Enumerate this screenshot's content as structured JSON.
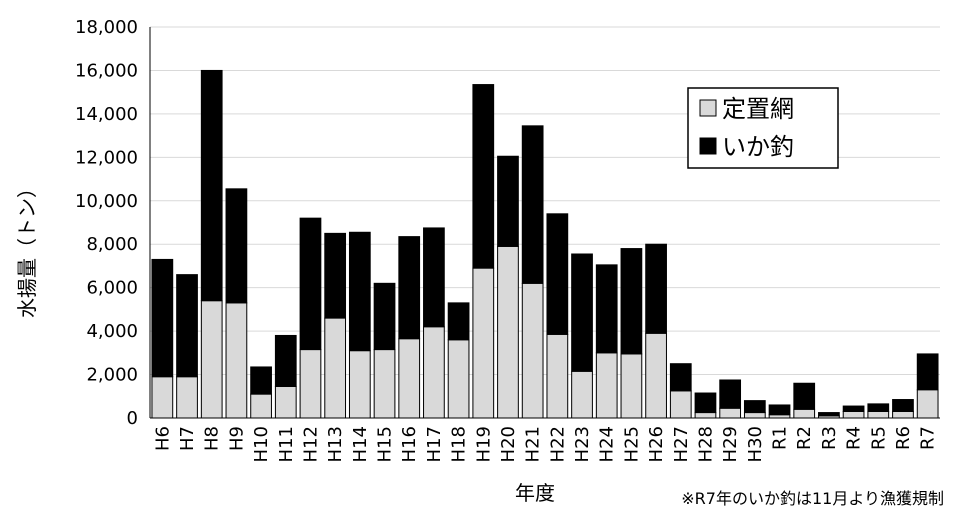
{
  "chart_data": {
    "type": "bar",
    "stacked": true,
    "xlabel": "年度",
    "ylabel": "水揚量（トン）",
    "ylim": [
      0,
      18000
    ],
    "yticks": [
      0,
      2000,
      4000,
      6000,
      8000,
      10000,
      12000,
      14000,
      16000,
      18000
    ],
    "ytick_labels": [
      "0",
      "2,000",
      "4,000",
      "6,000",
      "8,000",
      "10,000",
      "12,000",
      "14,000",
      "16,000",
      "18,000"
    ],
    "grid": true,
    "legend_position": "top-right",
    "categories": [
      "H6",
      "H7",
      "H8",
      "H9",
      "H10",
      "H11",
      "H12",
      "H13",
      "H14",
      "H15",
      "H16",
      "H17",
      "H18",
      "H19",
      "H20",
      "H21",
      "H22",
      "H23",
      "H24",
      "H25",
      "H26",
      "H27",
      "H28",
      "H29",
      "H30",
      "R1",
      "R2",
      "R3",
      "R4",
      "R5",
      "R6",
      "R7"
    ],
    "series": [
      {
        "name": "定置網",
        "color": "#d9d9d9",
        "values": [
          1900,
          1900,
          5400,
          5300,
          1100,
          1450,
          3150,
          4600,
          3100,
          3150,
          3650,
          4200,
          3600,
          6900,
          7900,
          6200,
          3850,
          2150,
          3000,
          2950,
          3900,
          1250,
          250,
          450,
          250,
          150,
          400,
          100,
          300,
          300,
          300,
          1300
        ]
      },
      {
        "name": "いか釣",
        "color": "#000000",
        "values": [
          5400,
          4700,
          10600,
          5250,
          1250,
          2350,
          6050,
          3900,
          5450,
          3050,
          4700,
          4550,
          1700,
          8450,
          4150,
          7250,
          5550,
          5400,
          4050,
          4850,
          4100,
          1250,
          900,
          1300,
          550,
          450,
          1200,
          150,
          250,
          350,
          550,
          1650
        ]
      }
    ],
    "footnote": "※R7年のいか釣は11月より漁獲規制"
  }
}
